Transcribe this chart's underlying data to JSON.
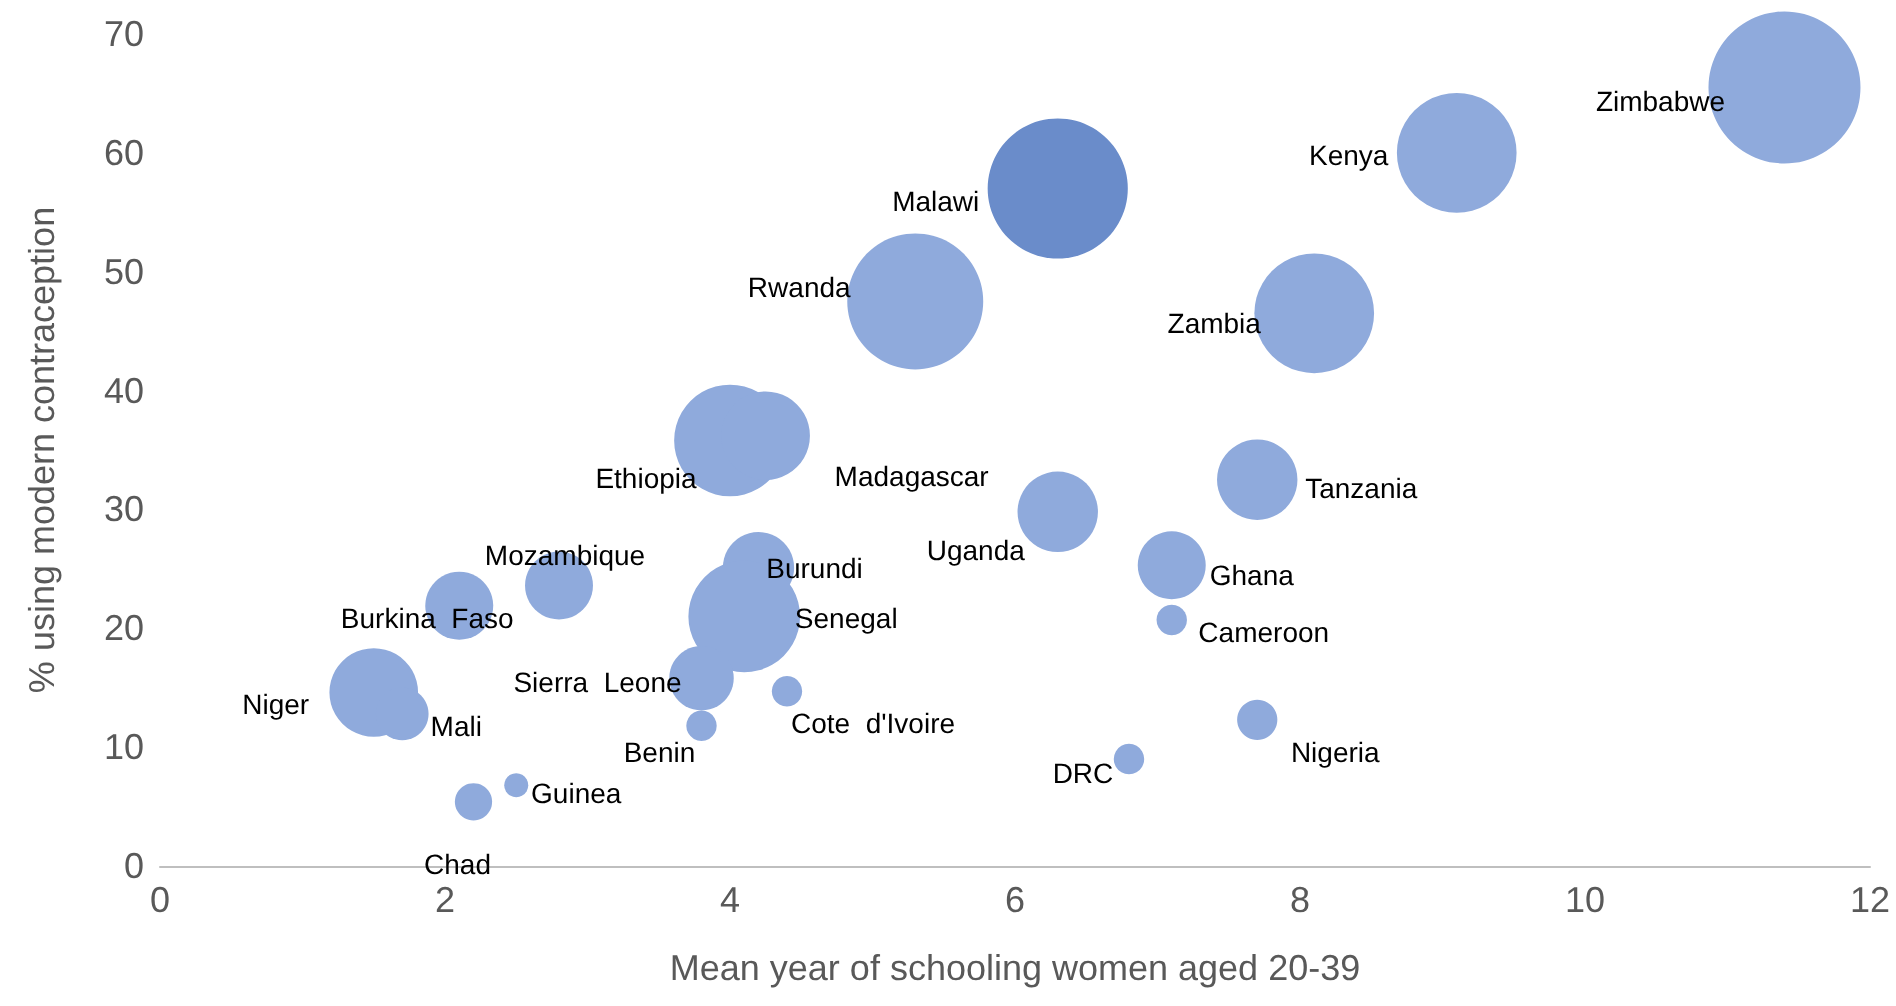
{
  "chart_data": {
    "type": "bubble",
    "xlabel": "Mean year of schooling women aged 20-39",
    "ylabel": "% using modern contraception",
    "xlim": [
      0,
      12
    ],
    "xticks": [
      0,
      2,
      4,
      6,
      8,
      10,
      12
    ],
    "ylim": [
      0,
      70
    ],
    "yticks": [
      0,
      10,
      20,
      30,
      40,
      50,
      60,
      70
    ],
    "x": [
      11.4,
      9.1,
      6.3,
      5.3,
      8.1,
      4.0,
      4.25,
      7.7,
      6.3,
      7.1,
      7.1,
      4.2,
      4.1,
      2.8,
      2.1,
      1.5,
      1.7,
      3.8,
      3.8,
      4.4,
      6.8,
      7.7,
      2.5,
      2.2
    ],
    "values": [
      65.5,
      60,
      57,
      47.5,
      46.5,
      35.8,
      36.2,
      32.5,
      29.8,
      25.3,
      20.7,
      25.1,
      21,
      23.6,
      21.9,
      14.6,
      12.8,
      15.8,
      11.8,
      14.7,
      9,
      12.3,
      6.8,
      5.4
    ],
    "sizes": [
      1,
      0.62,
      0.85,
      0.8,
      0.62,
      0.54,
      0.34,
      0.28,
      0.28,
      0.2,
      0.04,
      0.22,
      0.54,
      0.2,
      0.2,
      0.34,
      0.12,
      0.18,
      0.04,
      0.04,
      0.04,
      0.07,
      0.025,
      0.06
    ],
    "colors": [
      "#8faadc",
      "#8faadc",
      "#6a8cca",
      "#8faadc",
      "#8faadc",
      "#8faadc",
      "#8faadc",
      "#8faadc",
      "#8faadc",
      "#8faadc",
      "#8faadc",
      "#8faadc",
      "#8faadc",
      "#8faadc",
      "#8faadc",
      "#8faadc",
      "#8faadc",
      "#8faadc",
      "#8faadc",
      "#8faadc",
      "#8faadc",
      "#8faadc",
      "#8faadc",
      "#8faadc"
    ],
    "annotations": [
      {
        "text": "Zimbabwe",
        "x": 11.4,
        "y": 65.5
      },
      {
        "text": "Kenya",
        "x": 9.1,
        "y": 60
      },
      {
        "text": "Malawi",
        "x": 6.3,
        "y": 57
      },
      {
        "text": "Rwanda",
        "x": 5.3,
        "y": 47.5
      },
      {
        "text": "Zambia",
        "x": 8.1,
        "y": 46.5
      },
      {
        "text": "Ethiopia",
        "x": 4.0,
        "y": 35.8
      },
      {
        "text": "Madagascar",
        "x": 4.25,
        "y": 36.2
      },
      {
        "text": "Tanzania",
        "x": 7.7,
        "y": 32.5
      },
      {
        "text": "Uganda",
        "x": 6.3,
        "y": 29.8
      },
      {
        "text": "Ghana",
        "x": 7.1,
        "y": 25.3
      },
      {
        "text": "Cameroon",
        "x": 7.1,
        "y": 20.7
      },
      {
        "text": "Burundi",
        "x": 4.2,
        "y": 25.1
      },
      {
        "text": "Senegal",
        "x": 4.1,
        "y": 21
      },
      {
        "text": "Mozambique",
        "x": 2.8,
        "y": 23.6
      },
      {
        "text": "Burkina  Faso",
        "x": 2.1,
        "y": 21.9
      },
      {
        "text": "Niger",
        "x": 1.5,
        "y": 14.6
      },
      {
        "text": "Mali",
        "x": 1.7,
        "y": 12.8
      },
      {
        "text": "Sierra  Leone",
        "x": 3.8,
        "y": 15.8
      },
      {
        "text": "Benin",
        "x": 3.8,
        "y": 11.8
      },
      {
        "text": "Cote  d'Ivoire",
        "x": 4.4,
        "y": 14.7
      },
      {
        "text": "DRC",
        "x": 6.8,
        "y": 9
      },
      {
        "text": "Nigeria",
        "x": 7.7,
        "y": 12.3
      },
      {
        "text": "Guinea",
        "x": 2.5,
        "y": 6.8
      },
      {
        "text": "Chad",
        "x": 2.2,
        "y": 5.4
      }
    ]
  }
}
